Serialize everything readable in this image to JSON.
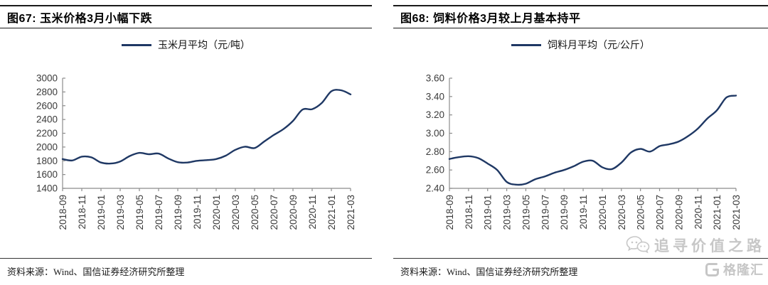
{
  "page": {
    "background": "#ffffff"
  },
  "colors": {
    "line": "#1f3864",
    "axis": "#8c8c8c",
    "tick_label": "#3b3b3b",
    "rule": "#1a1a1a",
    "watermark": "#c7c7c7"
  },
  "panels": [
    {
      "title": "图67:  玉米价格3月小幅下跌",
      "source": "资料来源：Wind、国信证券经济研究所整理"
    },
    {
      "title": "图68:  饲料价格3月较上月基本持平",
      "source": "资料来源：Wind、国信证券经济研究所整理"
    }
  ],
  "watermark": {
    "wechat_text": "追寻价值之路",
    "logo_text": "格隆汇"
  },
  "chart_data": [
    {
      "type": "line",
      "title": "图67: 玉米价格3月小幅下跌",
      "series_name": "玉米月平均（元/吨）",
      "xlabel": "",
      "ylabel": "",
      "grid": false,
      "legend_position": "top-center",
      "line_color": "#1f3864",
      "ylim": [
        1400,
        3000
      ],
      "y_ticks": [
        {
          "value": 3000,
          "label": "3000"
        },
        {
          "value": 2800,
          "label": "2800"
        },
        {
          "value": 2600,
          "label": "2600"
        },
        {
          "value": 2400,
          "label": "2400"
        },
        {
          "value": 2200,
          "label": "2200"
        },
        {
          "value": 2000,
          "label": "2000"
        },
        {
          "value": 1800,
          "label": "1800"
        },
        {
          "value": 1600,
          "label": "1600"
        },
        {
          "value": 1400,
          "label": "1400"
        }
      ],
      "x_tick_labels": [
        "2018-09",
        "2018-11",
        "2019-01",
        "2019-03",
        "2019-05",
        "2019-07",
        "2019-09",
        "2019-11",
        "2020-01",
        "2020-03",
        "2020-05",
        "2020-07",
        "2020-09",
        "2020-11",
        "2021-01",
        "2021-03"
      ],
      "x": [
        "2018-09",
        "2018-10",
        "2018-11",
        "2018-12",
        "2019-01",
        "2019-02",
        "2019-03",
        "2019-04",
        "2019-05",
        "2019-06",
        "2019-07",
        "2019-08",
        "2019-09",
        "2019-10",
        "2019-11",
        "2019-12",
        "2020-01",
        "2020-02",
        "2020-03",
        "2020-04",
        "2020-05",
        "2020-06",
        "2020-07",
        "2020-08",
        "2020-09",
        "2020-10",
        "2020-11",
        "2020-12",
        "2021-01",
        "2021-02",
        "2021-03"
      ],
      "values": [
        1825,
        1805,
        1860,
        1850,
        1775,
        1760,
        1790,
        1870,
        1915,
        1895,
        1905,
        1835,
        1780,
        1775,
        1800,
        1810,
        1825,
        1875,
        1960,
        2005,
        1985,
        2080,
        2175,
        2260,
        2380,
        2545,
        2550,
        2640,
        2810,
        2825,
        2765
      ]
    },
    {
      "type": "line",
      "title": "图68: 饲料价格3月较上月基本持平",
      "series_name": "饲料月平均（元/公斤）",
      "xlabel": "",
      "ylabel": "",
      "grid": false,
      "legend_position": "top-center",
      "line_color": "#1f3864",
      "ylim": [
        2.4,
        3.6
      ],
      "y_ticks": [
        {
          "value": 3.6,
          "label": "3.60"
        },
        {
          "value": 3.4,
          "label": "3.40"
        },
        {
          "value": 3.2,
          "label": "3.20"
        },
        {
          "value": 3.0,
          "label": "3.00"
        },
        {
          "value": 2.8,
          "label": "2.80"
        },
        {
          "value": 2.6,
          "label": "2.60"
        },
        {
          "value": 2.4,
          "label": "2.40"
        }
      ],
      "x_tick_labels": [
        "2018-09",
        "2018-11",
        "2019-01",
        "2019-03",
        "2019-05",
        "2019-07",
        "2019-09",
        "2019-11",
        "2020-01",
        "2020-03",
        "2020-05",
        "2020-07",
        "2020-09",
        "2020-11",
        "2021-01",
        "2021-03"
      ],
      "x": [
        "2018-09",
        "2018-10",
        "2018-11",
        "2018-12",
        "2019-01",
        "2019-02",
        "2019-03",
        "2019-04",
        "2019-05",
        "2019-06",
        "2019-07",
        "2019-08",
        "2019-09",
        "2019-10",
        "2019-11",
        "2019-12",
        "2020-01",
        "2020-02",
        "2020-03",
        "2020-04",
        "2020-05",
        "2020-06",
        "2020-07",
        "2020-08",
        "2020-09",
        "2020-10",
        "2020-11",
        "2020-12",
        "2021-01",
        "2021-02",
        "2021-03"
      ],
      "values": [
        2.72,
        2.74,
        2.75,
        2.73,
        2.67,
        2.6,
        2.47,
        2.44,
        2.45,
        2.5,
        2.53,
        2.57,
        2.6,
        2.64,
        2.69,
        2.7,
        2.63,
        2.61,
        2.68,
        2.79,
        2.83,
        2.8,
        2.86,
        2.88,
        2.91,
        2.97,
        3.05,
        3.16,
        3.25,
        3.39,
        3.41
      ]
    }
  ]
}
